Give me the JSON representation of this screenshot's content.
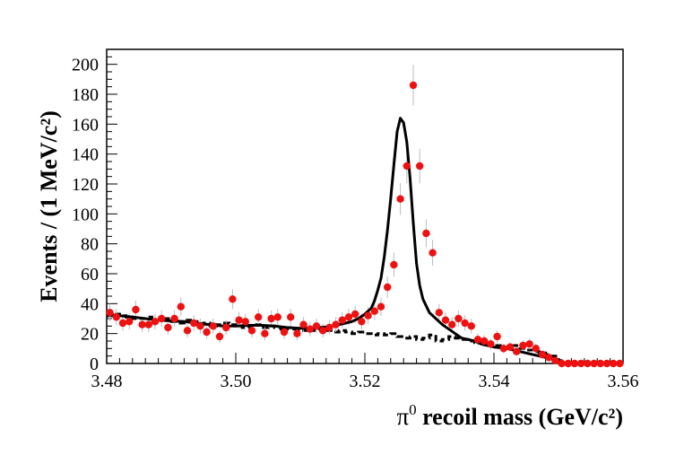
{
  "chart_data": {
    "type": "scatter",
    "title": "",
    "xlabel_symbol": "π",
    "xlabel_sup": "0",
    "xlabel_rest": " recoil mass (GeV/c²)",
    "ylabel": "Events  / (1 MeV/c²)",
    "xlim": [
      3.48,
      3.56
    ],
    "ylim": [
      0,
      210
    ],
    "x_ticks": [
      3.48,
      3.5,
      3.52,
      3.54,
      3.56
    ],
    "x_tick_labels": [
      "3.48",
      "3.50",
      "3.52",
      "3.54",
      "3.56"
    ],
    "y_ticks": [
      0,
      20,
      40,
      60,
      80,
      100,
      120,
      140,
      160,
      180,
      200
    ],
    "y_tick_labels": [
      "0",
      "20",
      "40",
      "60",
      "80",
      "100",
      "120",
      "140",
      "160",
      "180",
      "200"
    ],
    "colors": {
      "data": "#ee1111",
      "error": "#bbbbbb",
      "fit": "#000000",
      "background": "#000000"
    },
    "series": [
      {
        "name": "data",
        "style": "points",
        "x": [
          3.4805,
          3.4815,
          3.4825,
          3.4835,
          3.4845,
          3.4855,
          3.4865,
          3.4875,
          3.4885,
          3.4895,
          3.4905,
          3.4915,
          3.4925,
          3.4935,
          3.4945,
          3.4955,
          3.4965,
          3.4975,
          3.4985,
          3.4995,
          3.5005,
          3.5015,
          3.5025,
          3.5035,
          3.5045,
          3.5055,
          3.5065,
          3.5075,
          3.5085,
          3.5095,
          3.5105,
          3.5115,
          3.5125,
          3.5135,
          3.5145,
          3.5155,
          3.5165,
          3.5175,
          3.5185,
          3.5195,
          3.5205,
          3.5215,
          3.5225,
          3.5235,
          3.5245,
          3.5255,
          3.5265,
          3.5275,
          3.5285,
          3.5295,
          3.5305,
          3.5315,
          3.5325,
          3.5335,
          3.5345,
          3.5355,
          3.5365,
          3.5375,
          3.5385,
          3.5395,
          3.5405,
          3.5415,
          3.5425,
          3.5435,
          3.5445,
          3.5455,
          3.5465,
          3.5475,
          3.5485,
          3.5495,
          3.5505,
          3.5515,
          3.5525,
          3.5535,
          3.5545,
          3.5555,
          3.5565,
          3.5575,
          3.5585,
          3.5595
        ],
        "y": [
          34,
          31,
          27,
          28,
          36,
          26,
          26,
          28,
          30,
          24,
          30,
          38,
          22,
          27,
          25,
          21,
          25,
          18,
          24,
          43,
          29,
          28,
          22,
          31,
          20,
          30,
          31,
          21,
          31,
          20,
          26,
          23,
          25,
          22,
          24,
          26,
          29,
          31,
          33,
          28,
          32,
          35,
          38,
          51,
          66,
          110,
          132,
          186,
          132,
          87,
          74,
          34,
          29,
          26,
          30,
          27,
          25,
          16,
          15,
          13,
          18,
          10,
          11,
          8,
          12,
          13,
          10,
          6,
          4,
          2,
          0,
          0,
          0,
          0,
          0,
          0,
          0,
          0,
          0,
          0
        ],
        "err": [
          6,
          5.5,
          5.2,
          5.3,
          6,
          5.1,
          5.1,
          5.3,
          5.5,
          4.9,
          5.5,
          6.2,
          4.7,
          5.2,
          5,
          4.6,
          5,
          4.2,
          4.9,
          6.6,
          5.4,
          5.3,
          4.7,
          5.6,
          4.5,
          5.5,
          5.6,
          4.6,
          5.6,
          4.5,
          5.1,
          4.8,
          5,
          4.7,
          4.9,
          5.1,
          5.4,
          5.6,
          5.7,
          5.3,
          5.7,
          5.9,
          6.2,
          7.1,
          8.1,
          10.5,
          11.5,
          13.6,
          11.5,
          9.3,
          8.6,
          5.8,
          5.4,
          5.1,
          5.5,
          5.2,
          5,
          4,
          3.9,
          3.6,
          4.2,
          3.2,
          3.3,
          2.8,
          3.5,
          3.6,
          3.2,
          2.4,
          2,
          1.4,
          0,
          0,
          0,
          0,
          0,
          0,
          0,
          0,
          0,
          0
        ]
      },
      {
        "name": "fit",
        "style": "line",
        "x": [
          3.48,
          3.482,
          3.484,
          3.486,
          3.488,
          3.49,
          3.492,
          3.494,
          3.496,
          3.498,
          3.5,
          3.502,
          3.504,
          3.506,
          3.508,
          3.51,
          3.512,
          3.514,
          3.516,
          3.517,
          3.518,
          3.519,
          3.52,
          3.521,
          3.5215,
          3.522,
          3.5225,
          3.523,
          3.5235,
          3.524,
          3.5245,
          3.525,
          3.5255,
          3.526,
          3.5265,
          3.527,
          3.5275,
          3.528,
          3.5285,
          3.529,
          3.53,
          3.531,
          3.532,
          3.533,
          3.534,
          3.535,
          3.536,
          3.537,
          3.538,
          3.54,
          3.542,
          3.544,
          3.546,
          3.548,
          3.549,
          3.55,
          3.5505,
          3.551,
          3.552,
          3.554,
          3.556,
          3.56
        ],
        "y": [
          33,
          32,
          31,
          30,
          29,
          28.5,
          28,
          27,
          26,
          25,
          25,
          25.5,
          25.5,
          25,
          24,
          23.5,
          23.5,
          24.5,
          26,
          27,
          28,
          30,
          33,
          37,
          42,
          49,
          57,
          71,
          89,
          110,
          133,
          155,
          164,
          161,
          148,
          124,
          94,
          67,
          52,
          43,
          34,
          30,
          26,
          23,
          20,
          17,
          16,
          15,
          13,
          11,
          10,
          8,
          6,
          4,
          3,
          1.5,
          0.5,
          0,
          0,
          0,
          0,
          0
        ]
      },
      {
        "name": "background",
        "style": "dashed-step",
        "x": [
          3.48,
          3.481,
          3.482,
          3.483,
          3.484,
          3.485,
          3.486,
          3.487,
          3.488,
          3.489,
          3.49,
          3.491,
          3.492,
          3.493,
          3.494,
          3.495,
          3.496,
          3.497,
          3.498,
          3.499,
          3.5,
          3.501,
          3.502,
          3.503,
          3.504,
          3.505,
          3.506,
          3.507,
          3.508,
          3.509,
          3.51,
          3.511,
          3.512,
          3.513,
          3.514,
          3.515,
          3.516,
          3.517,
          3.518,
          3.519,
          3.52,
          3.521,
          3.522,
          3.523,
          3.524,
          3.525,
          3.526,
          3.527,
          3.528,
          3.529,
          3.53,
          3.531,
          3.532,
          3.533,
          3.534,
          3.535,
          3.536,
          3.537,
          3.538,
          3.539,
          3.54,
          3.541,
          3.542,
          3.543,
          3.544,
          3.545,
          3.546,
          3.547,
          3.548,
          3.549,
          3.55,
          3.551,
          3.56
        ],
        "y": [
          32,
          33,
          32,
          31,
          30,
          30,
          31,
          29,
          29,
          30,
          28,
          27,
          29,
          28,
          26,
          27,
          25,
          26,
          27,
          26,
          25,
          24,
          25,
          26,
          24,
          25,
          24,
          23,
          24,
          23,
          22,
          23,
          22,
          23,
          22,
          21,
          22,
          21,
          20,
          21,
          20,
          19,
          20,
          19,
          20,
          18,
          17,
          18,
          16,
          17,
          19,
          15,
          16,
          18,
          17,
          16,
          15,
          14,
          14,
          13,
          12,
          11,
          11,
          12,
          10,
          9,
          8,
          7,
          6,
          5,
          2,
          0,
          0
        ]
      }
    ]
  }
}
